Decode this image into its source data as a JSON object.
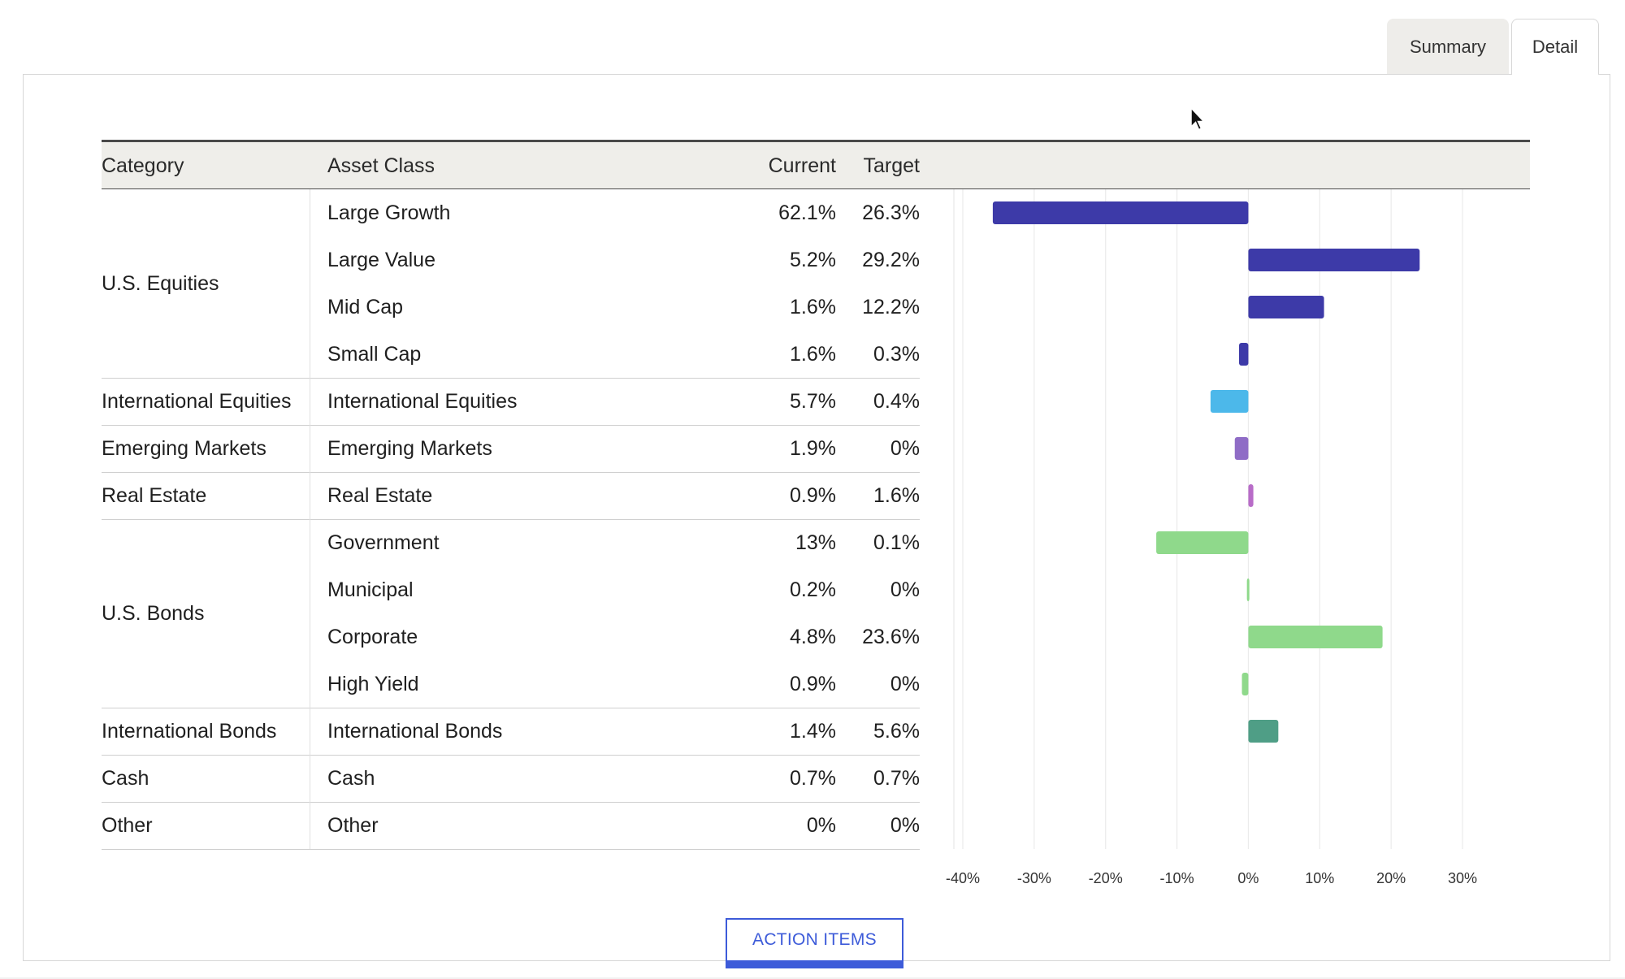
{
  "tabs": [
    {
      "label": "Summary",
      "active": false
    },
    {
      "label": "Detail",
      "active": true
    }
  ],
  "table": {
    "headers": {
      "category": "Category",
      "asset_class": "Asset Class",
      "current": "Current",
      "target": "Target"
    },
    "rows": [
      {
        "asset": "Large Growth",
        "current": "62.1%",
        "target": "26.3%"
      },
      {
        "asset": "Large Value",
        "current": "5.2%",
        "target": "29.2%"
      },
      {
        "asset": "Mid Cap",
        "current": "1.6%",
        "target": "12.2%"
      },
      {
        "asset": "Small Cap",
        "current": "1.6%",
        "target": "0.3%"
      },
      {
        "asset": "International Equities",
        "current": "5.7%",
        "target": "0.4%"
      },
      {
        "asset": "Emerging Markets",
        "current": "1.9%",
        "target": "0%"
      },
      {
        "asset": "Real Estate",
        "current": "0.9%",
        "target": "1.6%"
      },
      {
        "asset": "Government",
        "current": "13%",
        "target": "0.1%"
      },
      {
        "asset": "Municipal",
        "current": "0.2%",
        "target": "0%"
      },
      {
        "asset": "Corporate",
        "current": "4.8%",
        "target": "23.6%"
      },
      {
        "asset": "High Yield",
        "current": "0.9%",
        "target": "0%"
      },
      {
        "asset": "International Bonds",
        "current": "1.4%",
        "target": "5.6%"
      },
      {
        "asset": "Cash",
        "current": "0.7%",
        "target": "0.7%"
      },
      {
        "asset": "Other",
        "current": "0%",
        "target": "0%"
      }
    ],
    "categories": [
      {
        "label": "U.S. Equities",
        "first_row": 0,
        "row_count": 4
      },
      {
        "label": "International Equities",
        "first_row": 4,
        "row_count": 1
      },
      {
        "label": "Emerging Markets",
        "first_row": 5,
        "row_count": 1
      },
      {
        "label": "Real Estate",
        "first_row": 6,
        "row_count": 1
      },
      {
        "label": "U.S. Bonds",
        "first_row": 7,
        "row_count": 4
      },
      {
        "label": "International Bonds",
        "first_row": 11,
        "row_count": 1
      },
      {
        "label": "Cash",
        "first_row": 12,
        "row_count": 1
      },
      {
        "label": "Other",
        "first_row": 13,
        "row_count": 1
      }
    ]
  },
  "chart_data": {
    "type": "bar",
    "orientation": "horizontal",
    "categories": [
      "Large Growth",
      "Large Value",
      "Mid Cap",
      "Small Cap",
      "International Equities",
      "Emerging Markets",
      "Real Estate",
      "Government",
      "Municipal",
      "Corporate",
      "High Yield",
      "International Bonds",
      "Cash",
      "Other"
    ],
    "values": [
      -35.8,
      24.0,
      10.6,
      -1.3,
      -5.3,
      -1.9,
      0.7,
      -12.9,
      -0.2,
      18.8,
      -0.9,
      4.2,
      0,
      0
    ],
    "colors": [
      "#3d3aa8",
      "#3d3aa8",
      "#3d3aa8",
      "#3d3aa8",
      "#4cb8ea",
      "#8f6cc6",
      "#b86cc8",
      "#8fd98b",
      "#8fd98b",
      "#8fd98b",
      "#8fd98b",
      "#4f9e86",
      "#8fd98b",
      "#8fd98b"
    ],
    "xlim": [
      -40,
      30
    ],
    "xticks": [
      -40,
      -30,
      -20,
      -10,
      0,
      10,
      20,
      30
    ],
    "xtick_labels": [
      "-40%",
      "-30%",
      "-20%",
      "-10%",
      "0%",
      "10%",
      "20%",
      "30%"
    ],
    "grid": true
  },
  "action_button": {
    "label": "ACTION ITEMS"
  }
}
